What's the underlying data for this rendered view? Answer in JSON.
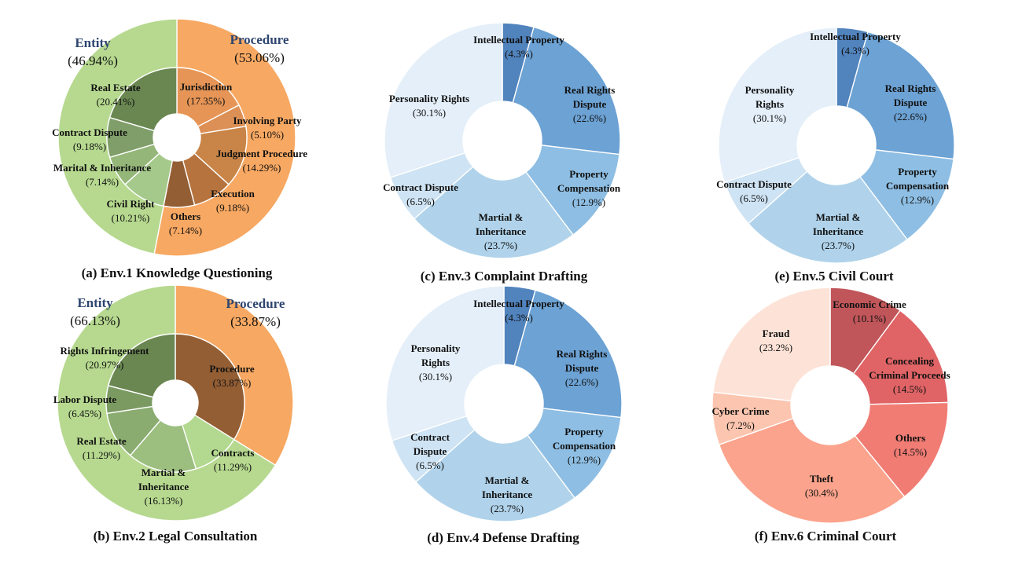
{
  "chart_data": [
    {
      "id": "a",
      "type": "pie",
      "caption": "(a) Env.1 Knowledge Questioning",
      "outer": [
        {
          "name": "Procedure",
          "pct": "(53.06%)",
          "value": 53.06,
          "color": "#f7a862"
        },
        {
          "name": "Entity",
          "pct": "(46.94%)",
          "value": 46.94,
          "color": "#b6d98f"
        }
      ],
      "inner": [
        {
          "name": "Jurisdiction",
          "pct": "(17.35%)",
          "value": 17.35,
          "color": "#e69556"
        },
        {
          "name": "Involving Party",
          "pct": "(5.10%)",
          "value": 5.1,
          "color": "#dc9055"
        },
        {
          "name": "Judgment Procedure",
          "pct": "(14.29%)",
          "value": 14.29,
          "color": "#c98548"
        },
        {
          "name": "Execution",
          "pct": "(9.18%)",
          "value": 9.18,
          "color": "#b6733e"
        },
        {
          "name": "Others",
          "pct": "(7.14%)",
          "value": 7.14,
          "color": "#935e34"
        },
        {
          "name": "Civil Right",
          "pct": "(10.21%)",
          "value": 10.21,
          "color": "#a5c98a"
        },
        {
          "name": "Marital & Inheritance",
          "pct": "(7.14%)",
          "value": 7.14,
          "color": "#94b779"
        },
        {
          "name": "Contract Dispute",
          "pct": "(9.18%)",
          "value": 9.18,
          "color": "#809e69"
        },
        {
          "name": "Real Estate",
          "pct": "(20.41%)",
          "value": 20.41,
          "color": "#6a8752"
        }
      ]
    },
    {
      "id": "b",
      "type": "pie",
      "caption": "(b) Env.2 Legal Consultation",
      "outer": [
        {
          "name": "Procedure",
          "pct": "(33.87%)",
          "value": 33.87,
          "color": "#f7a862"
        },
        {
          "name": "Entity",
          "pct": "(66.13%)",
          "value": 66.13,
          "color": "#b6d98f"
        }
      ],
      "inner": [
        {
          "name": "Procedure",
          "pct": "(33.87%)",
          "value": 33.87,
          "color": "#935e34"
        },
        {
          "name": "Contracts",
          "pct": "(11.29%)",
          "value": 11.29,
          "color": "#b3d88f"
        },
        {
          "name": "Martial & Inheritance",
          "pct": "(16.13%)",
          "value": 16.13,
          "color": "#9cbf80"
        },
        {
          "name": "Real Estate",
          "pct": "(11.29%)",
          "value": 11.29,
          "color": "#8aac70"
        },
        {
          "name": "Labor Dispute",
          "pct": "(6.45%)",
          "value": 6.45,
          "color": "#7a9a61"
        },
        {
          "name": "Rights Infringement",
          "pct": "(20.97%)",
          "value": 20.97,
          "color": "#6a8752"
        }
      ]
    },
    {
      "id": "c",
      "type": "pie",
      "caption": "(c) Env.3 Complaint Drafting",
      "slices": [
        {
          "name": "Intellectual Property",
          "pct": "(4.3%)",
          "value": 4.3,
          "color": "#5183bd"
        },
        {
          "name": "Real Rights Dispute",
          "pct": "(22.6%)",
          "value": 22.6,
          "color": "#6ca2d4"
        },
        {
          "name": "Property Compensation",
          "pct": "(12.9%)",
          "value": 12.9,
          "color": "#8ebee3"
        },
        {
          "name": "Martial & Inheritance",
          "pct": "(23.7%)",
          "value": 23.7,
          "color": "#b0d3eb"
        },
        {
          "name": "Contract Dispute",
          "pct": "(6.5%)",
          "value": 6.5,
          "color": "#cee3f3"
        },
        {
          "name": "Personality Rights",
          "pct": "(30.1%)",
          "value": 30.1,
          "color": "#e4eff9"
        }
      ]
    },
    {
      "id": "d",
      "type": "pie",
      "caption": "(d) Env.4 Defense Drafting",
      "slices": [
        {
          "name": "Intellectual Property",
          "pct": "(4.3%)",
          "value": 4.3,
          "color": "#5183bd"
        },
        {
          "name": "Real Rights Dispute",
          "pct": "(22.6%)",
          "value": 22.6,
          "color": "#6ca2d4"
        },
        {
          "name": "Property Compensation",
          "pct": "(12.9%)",
          "value": 12.9,
          "color": "#8ebee3"
        },
        {
          "name": "Martial & Inheritance",
          "pct": "(23.7%)",
          "value": 23.7,
          "color": "#b0d3eb"
        },
        {
          "name": "Contract Dispute",
          "pct": "(6.5%)",
          "value": 6.5,
          "color": "#cee3f3"
        },
        {
          "name": "Personality Rights",
          "pct": "(30.1%)",
          "value": 30.1,
          "color": "#e4eff9"
        }
      ]
    },
    {
      "id": "e",
      "type": "pie",
      "caption": "(e) Env.5 Civil Court",
      "slices": [
        {
          "name": "Intellectual Property",
          "pct": "(4.3%)",
          "value": 4.3,
          "color": "#5183bd"
        },
        {
          "name": "Real Rights Dispute",
          "pct": "(22.6%)",
          "value": 22.6,
          "color": "#6ca2d4"
        },
        {
          "name": "Property Compensation",
          "pct": "(12.9%)",
          "value": 12.9,
          "color": "#8ebee3"
        },
        {
          "name": "Martial & Inheritance",
          "pct": "(23.7%)",
          "value": 23.7,
          "color": "#b0d3eb"
        },
        {
          "name": "Contract Dispute",
          "pct": "(6.5%)",
          "value": 6.5,
          "color": "#cee3f3"
        },
        {
          "name": "Personality Rights",
          "pct": "(30.1%)",
          "value": 30.1,
          "color": "#e4eff9"
        }
      ]
    },
    {
      "id": "f",
      "type": "pie",
      "caption": "(f) Env.6 Criminal Court",
      "slices": [
        {
          "name": "Economic Crime",
          "pct": "(10.1%)",
          "value": 10.1,
          "color": "#c0565a"
        },
        {
          "name": "Concealing Criminal Proceeds",
          "pct": "(14.5%)",
          "value": 14.5,
          "color": "#e06466"
        },
        {
          "name": "Others",
          "pct": "(14.5%)",
          "value": 14.5,
          "color": "#f07c74"
        },
        {
          "name": "Theft",
          "pct": "(30.4%)",
          "value": 30.4,
          "color": "#fba38c"
        },
        {
          "name": "Cyber Crime",
          "pct": "(7.2%)",
          "value": 7.2,
          "color": "#fcc5af"
        },
        {
          "name": "Fraud",
          "pct": "(23.2%)",
          "value": 23.2,
          "color": "#fde3d7"
        }
      ]
    }
  ]
}
